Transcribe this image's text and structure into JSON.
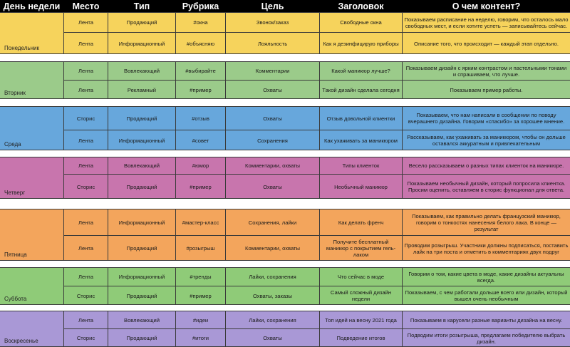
{
  "header": {
    "day": "День недели",
    "place": "Место",
    "type": "Тип",
    "rubric": "Рубрика",
    "goal": "Цель",
    "headline": "Заголовок",
    "content": "О чем контент?"
  },
  "colors": {
    "header_bg": "#000000",
    "monday": "#f6d35c",
    "tuesday": "#9bcb8a",
    "wednesday": "#67a7dc",
    "thursday": "#c875ad",
    "friday": "#f3a55c",
    "saturday": "#8fcb78",
    "sunday": "#a998d6"
  },
  "days": [
    {
      "name": "Понедельник",
      "rows": [
        {
          "place": "Лента",
          "type": "Продающий",
          "rubric": "#окна",
          "goal": "Звонок/заказ",
          "headline": "Свободные окна",
          "content": "Показываем расписание на неделю, говорим, что осталось мало свободных мест, и если хотите успеть — записывайтесь сейчас."
        },
        {
          "place": "Лента",
          "type": "Информационный",
          "rubric": "#объясняю",
          "goal": "Лояльность",
          "headline": "Как я дезинфицирую приборы",
          "content": "Описание того, что происходит — каждый этап отдельно."
        }
      ]
    },
    {
      "name": "Вторник",
      "rows": [
        {
          "place": "Лента",
          "type": "Вовлекающий",
          "rubric": "#выбирайте",
          "goal": "Комментарии",
          "headline": "Какой маникюр лучше?",
          "content": "Показываем дизайн с ярким контрастом и пастельными тонами и спрашиваем, что лучше."
        },
        {
          "place": "Лента",
          "type": "Рекламный",
          "rubric": "#пример",
          "goal": "Охваты",
          "headline": "Такой дизайн сделала сегодня",
          "content": "Показываем пример работы."
        }
      ]
    },
    {
      "name": "Среда",
      "rows": [
        {
          "place": "Сторис",
          "type": "Продающий",
          "rubric": "#отзыв",
          "goal": "Охваты",
          "headline": "Отзыв довольной клиентки",
          "content": "Показываем, что нам написали в сообщении по поводу вчерашнего дизайна. Говорим «спасибо» за хорошее мнение."
        },
        {
          "place": "Лента",
          "type": "Информационный",
          "rubric": "#совет",
          "goal": "Сохранения",
          "headline": "Как ухаживать за маникюром",
          "content": "Рассказываем, как ухаживать за маникюром, чтобы он дольше оставался аккуратным и привлекательным"
        }
      ]
    },
    {
      "name": "Четверг",
      "rows": [
        {
          "place": "Лента",
          "type": "Вовлекающий",
          "rubric": "#юмор",
          "goal": "Комментарии, охваты",
          "headline": "Типы клиенток",
          "content": "Весело рассказываем о разных типах клиенток на маникюре."
        },
        {
          "place": "Сторис",
          "type": "Продающий",
          "rubric": "#пример",
          "goal": "Охваты",
          "headline": "Необычный маникюр",
          "content": "Показываем необычный дизайн, который попросила клиентка. Просим оценить, оставляем в сторис функционал для ответа."
        }
      ]
    },
    {
      "name": "Пятница",
      "rows": [
        {
          "place": "Лента",
          "type": "Информационный",
          "rubric": "#мастер-класс",
          "goal": "Сохранения, лайки",
          "headline": "Как делать френч",
          "content": "Показываем, как правильно делать французский маникюр, говорим о тонкостях нанесения белого лака. В конце — результат"
        },
        {
          "place": "Лента",
          "type": "Продающий",
          "rubric": "#розыгрыш",
          "goal": "Комментарии, охваты",
          "headline": "Получите бесплатный маникюр с покрытием гель-лаком",
          "content": "Проводим розыгрыш. Участники должны подписаться, поставить лайк на три поста и отметить в комментариях двух подруг"
        }
      ]
    },
    {
      "name": "Суббота",
      "rows": [
        {
          "place": "Лента",
          "type": "Информационный",
          "rubric": "#тренды",
          "goal": "Лайки, сохранения",
          "headline": "Что сейчас в моде",
          "content": "Говорим о том, какие цвета в моде, какие дизайны актуальны всегда."
        },
        {
          "place": "Сторис",
          "type": "Продающий",
          "rubric": "#пример",
          "goal": "Охваты, заказы",
          "headline": "Самый сложный дизайн недели",
          "content": "Показываем, с чем работали дольше всего или дизайн, который вышел очень необычным"
        }
      ]
    },
    {
      "name": "Воскресенье",
      "rows": [
        {
          "place": "Лента",
          "type": "Вовлекающий",
          "rubric": "#идеи",
          "goal": "Лайки, сохранения",
          "headline": "Топ идей на весну 2021 года",
          "content": "Показываем в карусели разные варианты дизайна на весну."
        },
        {
          "place": "Сторис",
          "type": "Продающий",
          "rubric": "#итоги",
          "goal": "Охваты",
          "headline": "Подведение итогов",
          "content": "Подводим итоги розыгрыша, предлагаем победителю выбрать дизайн."
        }
      ]
    }
  ]
}
